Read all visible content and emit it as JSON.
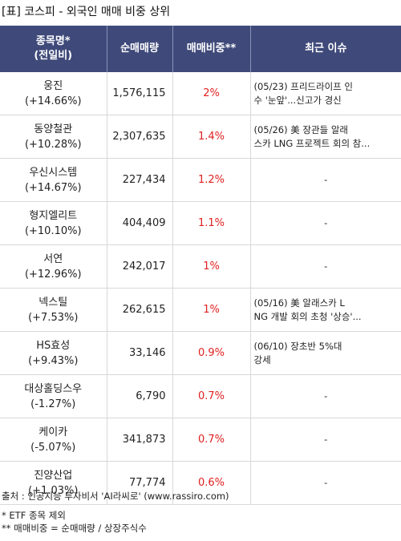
{
  "title": "[표] 코스피 - 외국인 매매 비중 상위",
  "headers": {
    "name_line1": "종목명*",
    "name_line2": "(전일비)",
    "volume": "순매매량",
    "ratio": "매매비중**",
    "issue": "최근 이슈"
  },
  "rows": [
    {
      "name": "웅진",
      "change": "(+14.66%)",
      "volume": "1,576,115",
      "ratio": "2%",
      "issue_line1": "(05/23) 프리드라이프 인",
      "issue_line2": "수 '눈앞'...신고가 경신"
    },
    {
      "name": "동양철관",
      "change": "(+10.28%)",
      "volume": "2,307,635",
      "ratio": "1.4%",
      "issue_line1": "(05/26) 美 장관들 알래",
      "issue_line2": "스카 LNG 프로젝트 회의 참..."
    },
    {
      "name": "우신시스템",
      "change": "(+14.67%)",
      "volume": "227,434",
      "ratio": "1.2%",
      "issue_line1": "-",
      "issue_line2": ""
    },
    {
      "name": "형지엘리트",
      "change": "(+10.10%)",
      "volume": "404,409",
      "ratio": "1.1%",
      "issue_line1": "-",
      "issue_line2": ""
    },
    {
      "name": "서연",
      "change": "(+12.96%)",
      "volume": "242,017",
      "ratio": "1%",
      "issue_line1": "-",
      "issue_line2": ""
    },
    {
      "name": "넥스틸",
      "change": "(+7.53%)",
      "volume": "262,615",
      "ratio": "1%",
      "issue_line1": "(05/16) 美 알래스카 L",
      "issue_line2": "NG 개발 회의 초청 '상승'..."
    },
    {
      "name": "HS효성",
      "change": "(+9.43%)",
      "volume": "33,146",
      "ratio": "0.9%",
      "issue_line1": "(06/10) 장초반 5%대",
      "issue_line2": "강세"
    },
    {
      "name": "대상홀딩스우",
      "change": "(-1.27%)",
      "volume": "6,790",
      "ratio": "0.7%",
      "issue_line1": "-",
      "issue_line2": ""
    },
    {
      "name": "케이카",
      "change": "(-5.07%)",
      "volume": "341,873",
      "ratio": "0.7%",
      "issue_line1": "-",
      "issue_line2": ""
    },
    {
      "name": "진양산업",
      "change": "(+1.03%)",
      "volume": "77,774",
      "ratio": "0.6%",
      "issue_line1": "-",
      "issue_line2": ""
    }
  ],
  "footer": {
    "source": "출처 : 인공지능 투자비서 'AI라씨로' (www.rassiro.com)",
    "note1": "* ETF 종목 제외",
    "note2": "** 매매비중 = 순매매량 / 상장주식수"
  }
}
